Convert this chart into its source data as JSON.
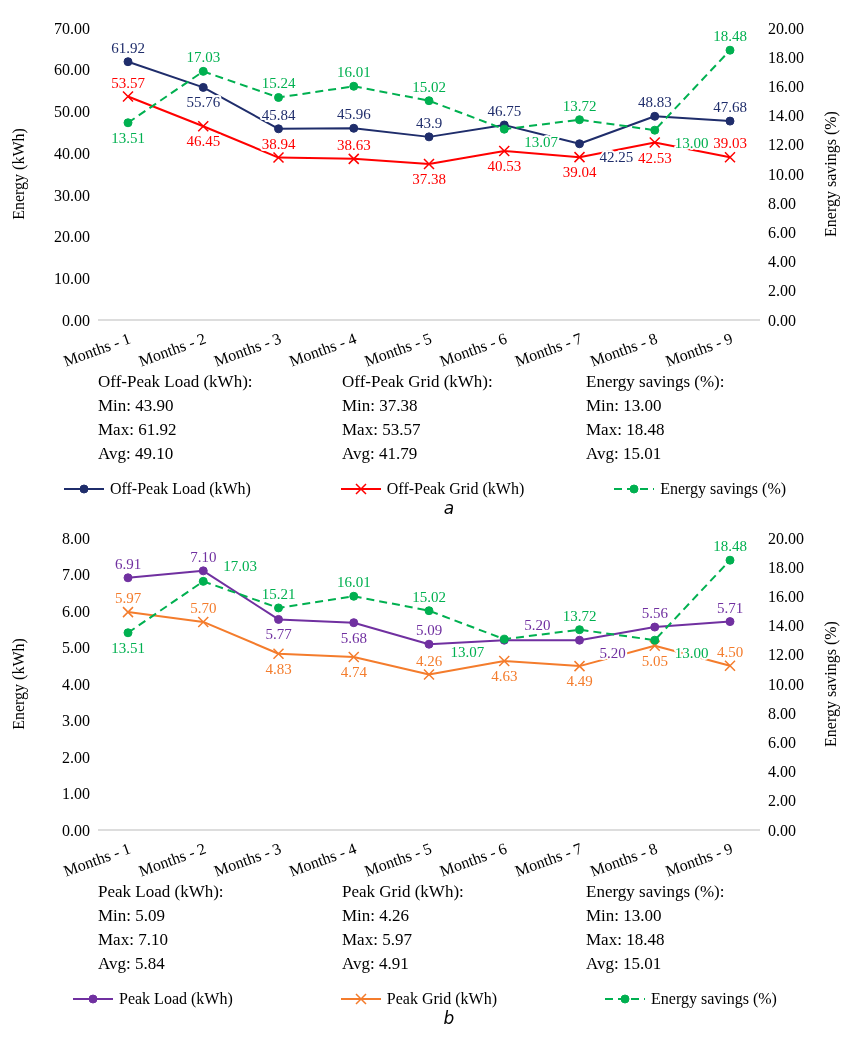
{
  "chart_data": [
    {
      "type": "line",
      "categories": [
        "Months - 1",
        "Months - 2",
        "Months - 3",
        "Months - 4",
        "Months - 5",
        "Months - 6",
        "Months - 7",
        "Months - 8",
        "Months - 9"
      ],
      "ylabel": "Energy (kWh)",
      "y2label": "Energy savings (%)",
      "ylim": [
        0,
        70
      ],
      "yticks": [
        {
          "value": 0,
          "label": "0.00"
        },
        {
          "value": 10,
          "label": "10.00"
        },
        {
          "value": 20,
          "label": "20.00"
        },
        {
          "value": 30,
          "label": "30.00"
        },
        {
          "value": 40,
          "label": "40.00"
        },
        {
          "value": 50,
          "label": "50.00"
        },
        {
          "value": 60,
          "label": "60.00"
        },
        {
          "value": 70,
          "label": "70.00"
        }
      ],
      "y2lim": [
        0,
        20
      ],
      "y2ticks": [
        {
          "value": 0,
          "label": "0.00"
        },
        {
          "value": 2,
          "label": "2.00"
        },
        {
          "value": 4,
          "label": "4.00"
        },
        {
          "value": 6,
          "label": "6.00"
        },
        {
          "value": 8,
          "label": "8.00"
        },
        {
          "value": 10,
          "label": "10.00"
        },
        {
          "value": 12,
          "label": "12.00"
        },
        {
          "value": 14,
          "label": "14.00"
        },
        {
          "value": 16,
          "label": "16.00"
        },
        {
          "value": 18,
          "label": "18.00"
        },
        {
          "value": 20,
          "label": "20.00"
        }
      ],
      "legend": "bottom",
      "series": [
        {
          "name": "Off-Peak Load (kWh)",
          "color": "#1f2d6b",
          "marker": "circle",
          "line_style": "solid",
          "values": [
            61.92,
            55.76,
            45.84,
            45.96,
            43.9,
            46.75,
            42.25,
            48.83,
            47.68
          ],
          "value_labels": [
            "61.92",
            "55.76",
            "45.84",
            "45.96",
            "43.9",
            "46.75",
            "42.25",
            "48.83",
            "47.68"
          ]
        },
        {
          "name": "Off-Peak Grid (kWh)",
          "color": "#ff0000",
          "marker": "cross",
          "line_style": "solid",
          "values": [
            53.57,
            46.45,
            38.94,
            38.63,
            37.38,
            40.53,
            39.04,
            42.53,
            39.03
          ],
          "value_labels": [
            "53.57",
            "46.45",
            "38.94",
            "38.63",
            "37.38",
            "40.53",
            "39.04",
            "42.53",
            "39.03"
          ]
        },
        {
          "name": "Energy savings (%)",
          "color": "#00b050",
          "marker": "circle",
          "line_style": "dashed",
          "axis": "y2",
          "values": [
            13.51,
            17.03,
            15.24,
            16.01,
            15.02,
            13.07,
            13.72,
            13.0,
            18.48
          ],
          "value_labels": [
            "13.51",
            "17.03",
            "15.24",
            "16.01",
            "15.02",
            "13.07",
            "13.72",
            "13.00",
            "18.48"
          ]
        }
      ],
      "annotations": [
        "Off-Peak Load (kWh):\nMin: 43.90\nMax: 61.92\nAvg: 49.10",
        "Off-Peak Grid (kWh):\nMin: 37.38\nMax: 53.57\nAvg: 41.79",
        "Energy savings (%):\nMin: 13.00\nMax: 18.48\nAvg: 15.01",
        "a"
      ]
    },
    {
      "type": "line",
      "categories": [
        "Months - 1",
        "Months - 2",
        "Months - 3",
        "Months - 4",
        "Months - 5",
        "Months - 6",
        "Months - 7",
        "Months - 8",
        "Months - 9"
      ],
      "ylabel": "Energy (kWh)",
      "y2label": "Energy savings (%)",
      "ylim": [
        0,
        8
      ],
      "yticks": [
        {
          "value": 0,
          "label": "0.00"
        },
        {
          "value": 1,
          "label": "1.00"
        },
        {
          "value": 2,
          "label": "2.00"
        },
        {
          "value": 3,
          "label": "3.00"
        },
        {
          "value": 4,
          "label": "4.00"
        },
        {
          "value": 5,
          "label": "5.00"
        },
        {
          "value": 6,
          "label": "6.00"
        },
        {
          "value": 7,
          "label": "7.00"
        },
        {
          "value": 8,
          "label": "8.00"
        }
      ],
      "y2lim": [
        0,
        20
      ],
      "y2ticks": [
        {
          "value": 0,
          "label": "0.00"
        },
        {
          "value": 2,
          "label": "2.00"
        },
        {
          "value": 4,
          "label": "4.00"
        },
        {
          "value": 6,
          "label": "6.00"
        },
        {
          "value": 8,
          "label": "8.00"
        },
        {
          "value": 10,
          "label": "10.00"
        },
        {
          "value": 12,
          "label": "12.00"
        },
        {
          "value": 14,
          "label": "14.00"
        },
        {
          "value": 16,
          "label": "16.00"
        },
        {
          "value": 18,
          "label": "18.00"
        },
        {
          "value": 20,
          "label": "20.00"
        }
      ],
      "legend": "bottom",
      "series": [
        {
          "name": "Peak Load (kWh)",
          "color": "#7030a0",
          "marker": "circle",
          "line_style": "solid",
          "values": [
            6.91,
            7.1,
            5.77,
            5.68,
            5.09,
            5.2,
            5.2,
            5.56,
            5.71
          ],
          "value_labels": [
            "6.91",
            "7.10",
            "5.77",
            "5.68",
            "5.09",
            "5.20",
            "5.20",
            "5.56",
            "5.71"
          ]
        },
        {
          "name": "Peak Grid (kWh)",
          "color": "#f47c2c",
          "marker": "cross",
          "line_style": "solid",
          "values": [
            5.97,
            5.7,
            4.83,
            4.74,
            4.26,
            4.63,
            4.49,
            5.05,
            4.5
          ],
          "value_labels": [
            "5.97",
            "5.70",
            "4.83",
            "4.74",
            "4.26",
            "4.63",
            "4.49",
            "5.05",
            "4.50"
          ]
        },
        {
          "name": "Energy savings (%)",
          "color": "#00b050",
          "marker": "circle",
          "line_style": "dashed",
          "axis": "y2",
          "values": [
            13.51,
            17.03,
            15.21,
            16.01,
            15.02,
            13.07,
            13.72,
            13.0,
            18.48
          ],
          "value_labels": [
            "13.51",
            "17.03",
            "15.21",
            "16.01",
            "15.02",
            "13.07",
            "13.72",
            "13.00",
            "18.48"
          ]
        }
      ],
      "annotations": [
        "Peak Load (kWh):\nMin: 5.09\nMax: 7.10\nAvg: 5.84",
        "Peak Grid (kWh):\nMin: 4.26\nMax: 5.97\nAvg: 4.91",
        "Energy savings (%):\nMin: 13.00\nMax: 18.48\nAvg: 15.01",
        "b"
      ]
    }
  ]
}
